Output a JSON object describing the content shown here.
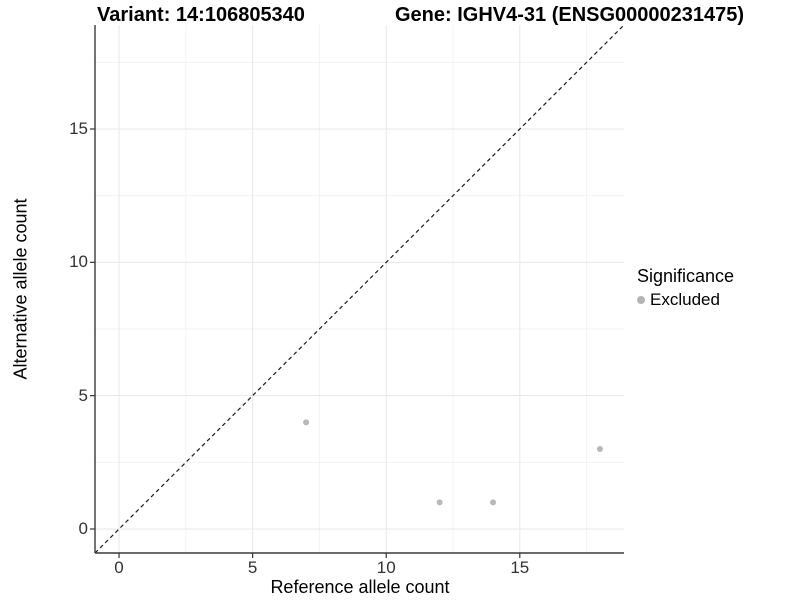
{
  "chart_data": {
    "type": "scatter",
    "title_left": "Variant: 14:106805340",
    "title_right": "Gene: IGHV4-31 (ENSG00000231475)",
    "xlabel": "Reference allele count",
    "ylabel": "Alternative allele count",
    "xlim": [
      -0.9,
      18.9
    ],
    "ylim": [
      -0.9,
      18.9
    ],
    "x_major_ticks": [
      0,
      5,
      10,
      15
    ],
    "y_major_ticks": [
      0,
      5,
      10,
      15
    ],
    "x_minor_ticks": [
      2.5,
      7.5,
      12.5,
      17.5
    ],
    "y_minor_ticks": [
      2.5,
      7.5,
      12.5,
      17.5
    ],
    "grid": "major and minor, light gray on white",
    "reference_line": {
      "name": "identity y=x",
      "slope": 1,
      "intercept": 0,
      "style": "dashed"
    },
    "series": [
      {
        "name": "Excluded",
        "points": [
          [
            7,
            4
          ],
          [
            12,
            1
          ],
          [
            14,
            1
          ],
          [
            18,
            3
          ]
        ]
      }
    ],
    "legend": {
      "title": "Significance",
      "position": "right",
      "items": [
        {
          "label": "Excluded"
        }
      ]
    }
  },
  "colors": {
    "background": "#ffffff",
    "point": "#b8b8b8",
    "legend_key": "#b4b4b4",
    "grid_major": "#e7e7e7",
    "grid_minor": "#f3f3f3",
    "axis_line": "#3a3a3a",
    "tick_mark": "#333333",
    "reference_line": "#1a1a1a"
  }
}
